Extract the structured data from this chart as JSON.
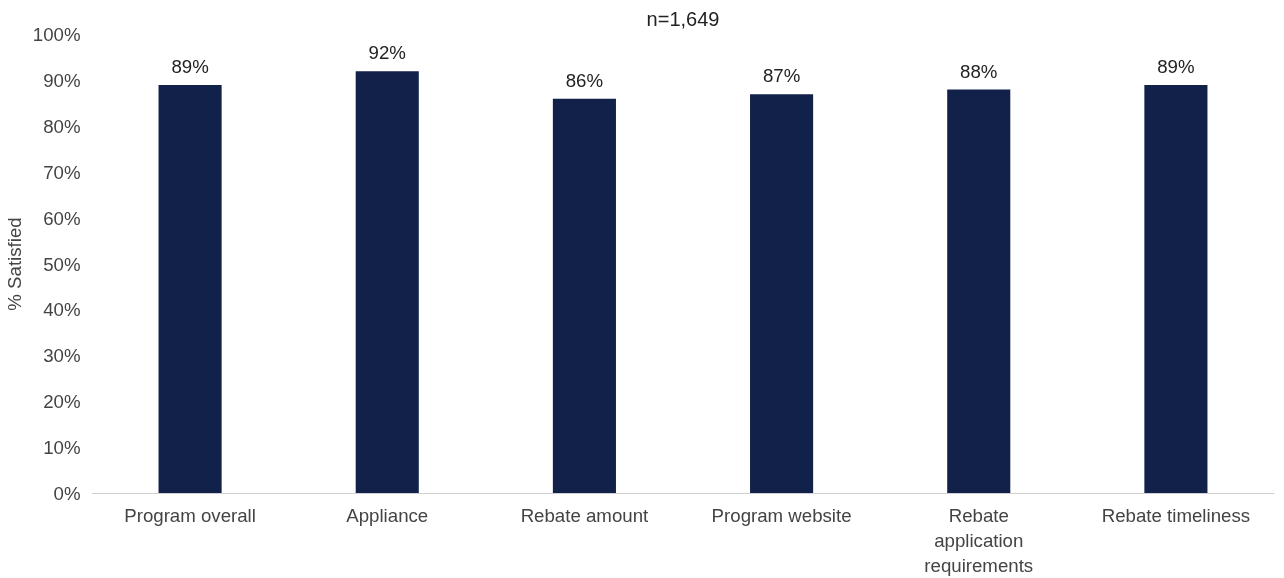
{
  "chart_data": {
    "type": "bar",
    "title": "n=1,649",
    "ylabel": "% Satisfied",
    "categories": [
      "Program overall",
      "Appliance",
      "Rebate amount",
      "Program website",
      "Rebate application requirements",
      "Rebate timeliness"
    ],
    "values": [
      89,
      92,
      86,
      87,
      88,
      89
    ],
    "value_labels": [
      "89%",
      "92%",
      "86%",
      "87%",
      "88%",
      "89%"
    ],
    "color": "#12214a",
    "ylim": [
      0,
      100
    ],
    "yticks": [
      {
        "value": 0,
        "label": "0%"
      },
      {
        "value": 10,
        "label": "10%"
      },
      {
        "value": 20,
        "label": "20%"
      },
      {
        "value": 30,
        "label": "30%"
      },
      {
        "value": 40,
        "label": "40%"
      },
      {
        "value": 50,
        "label": "50%"
      },
      {
        "value": 60,
        "label": "60%"
      },
      {
        "value": 70,
        "label": "70%"
      },
      {
        "value": 80,
        "label": "80%"
      },
      {
        "value": 90,
        "label": "90%"
      },
      {
        "value": 100,
        "label": "100%"
      }
    ],
    "grid": false
  }
}
